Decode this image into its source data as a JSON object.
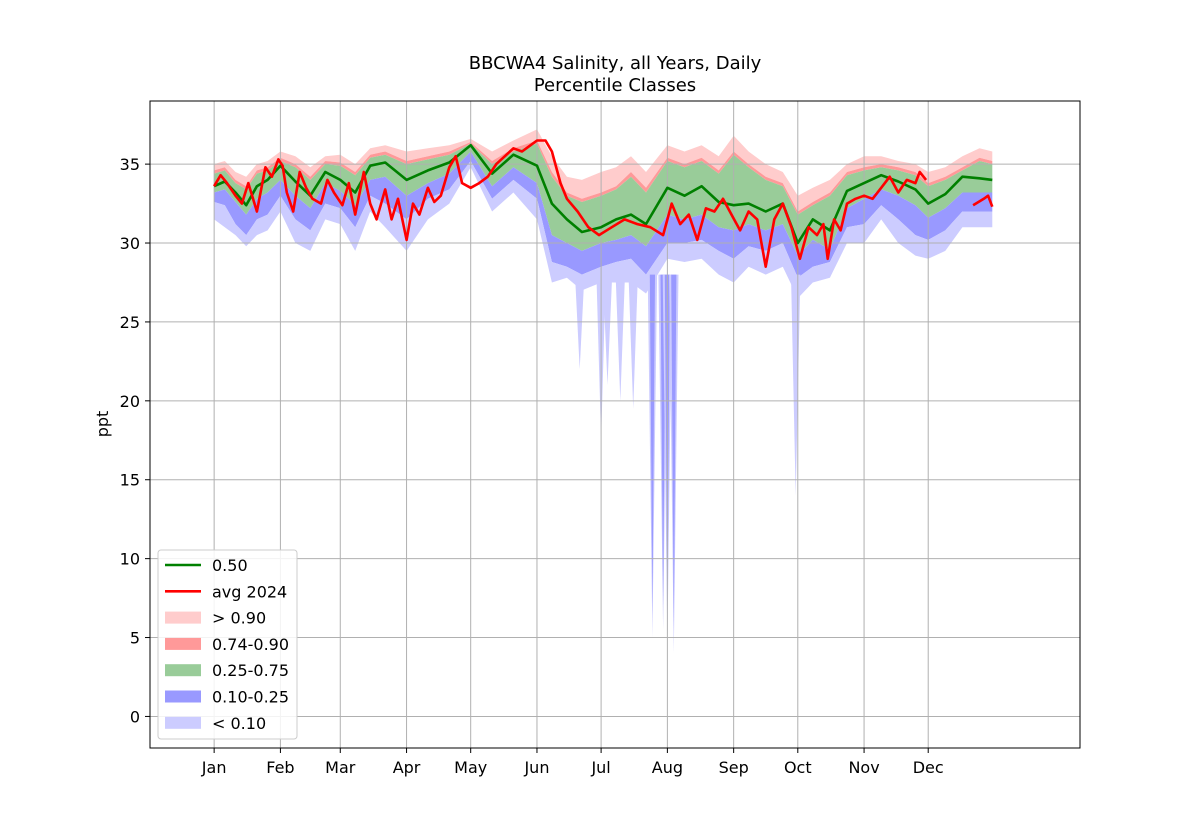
{
  "chart_data": {
    "type": "area",
    "title": "BBCWA4 Salinity, all Years, Daily",
    "subtitle": "Percentile Classes",
    "xlabel": "",
    "ylabel": "ppt",
    "ylim": [
      -2,
      39
    ],
    "xlim": [
      -30,
      405
    ],
    "grid": true,
    "legend_position": "lower-left",
    "x_ticks": [
      {
        "day": 0,
        "label": "Jan"
      },
      {
        "day": 31,
        "label": "Feb"
      },
      {
        "day": 59,
        "label": "Mar"
      },
      {
        "day": 90,
        "label": "Apr"
      },
      {
        "day": 120,
        "label": "May"
      },
      {
        "day": 151,
        "label": "Jun"
      },
      {
        "day": 181,
        "label": "Jul"
      },
      {
        "day": 212,
        "label": "Aug"
      },
      {
        "day": 243,
        "label": "Sep"
      },
      {
        "day": 273,
        "label": "Oct"
      },
      {
        "day": 304,
        "label": "Nov"
      },
      {
        "day": 334,
        "label": "Dec"
      }
    ],
    "y_ticks": [
      0,
      5,
      10,
      15,
      20,
      25,
      30,
      35
    ],
    "x_days": [
      0,
      5,
      10,
      15,
      20,
      25,
      31,
      38,
      45,
      52,
      59,
      66,
      73,
      80,
      90,
      100,
      110,
      120,
      130,
      140,
      151,
      158,
      165,
      172,
      181,
      188,
      195,
      202,
      212,
      220,
      228,
      236,
      243,
      250,
      258,
      266,
      273,
      280,
      288,
      296,
      304,
      312,
      320,
      328,
      334,
      342,
      350,
      358,
      364
    ],
    "median": [
      33.6,
      33.9,
      33.2,
      32.4,
      33.6,
      34.0,
      34.9,
      33.9,
      33.0,
      34.5,
      34.0,
      33.2,
      34.9,
      35.1,
      34.0,
      34.6,
      35.1,
      36.2,
      34.4,
      35.6,
      34.9,
      32.5,
      31.5,
      30.7,
      31.0,
      31.5,
      31.8,
      31.2,
      33.5,
      33.0,
      33.6,
      32.6,
      32.4,
      32.5,
      32.0,
      32.5,
      30.0,
      31.5,
      30.8,
      33.3,
      33.8,
      34.3,
      33.9,
      33.4,
      32.5,
      33.1,
      34.2,
      34.1,
      34.0
    ],
    "band_p90": [
      35.0,
      35.2,
      34.5,
      34.2,
      35.0,
      35.2,
      35.8,
      35.5,
      34.8,
      35.5,
      35.6,
      35.0,
      36.0,
      36.2,
      35.8,
      36.0,
      36.2,
      36.6,
      35.8,
      36.5,
      37.2,
      35.5,
      34.2,
      34.0,
      34.5,
      34.8,
      35.5,
      34.5,
      36.2,
      35.8,
      36.2,
      35.5,
      36.8,
      35.8,
      35.0,
      34.5,
      33.0,
      33.5,
      34.0,
      35.0,
      35.5,
      35.5,
      35.2,
      35.0,
      34.5,
      34.8,
      35.5,
      36.0,
      35.8
    ],
    "band_p74": [
      34.6,
      34.8,
      34.0,
      33.6,
      34.6,
      34.8,
      35.4,
      35.0,
      34.2,
      35.2,
      35.1,
      34.5,
      35.6,
      35.8,
      35.2,
      35.5,
      35.8,
      36.4,
      35.2,
      36.0,
      36.5,
      34.5,
      33.2,
      32.8,
      33.2,
      33.6,
      34.5,
      33.5,
      35.4,
      35.0,
      35.4,
      34.6,
      35.8,
      35.0,
      34.2,
      33.8,
      32.0,
      32.6,
      33.2,
      34.5,
      34.8,
      35.0,
      34.8,
      34.5,
      33.8,
      34.2,
      34.8,
      35.4,
      35.2
    ],
    "band_p75": [
      34.4,
      34.6,
      33.8,
      33.4,
      34.4,
      34.6,
      35.2,
      34.8,
      34.0,
      35.0,
      34.9,
      34.3,
      35.4,
      35.6,
      35.0,
      35.3,
      35.6,
      36.3,
      35.0,
      35.8,
      36.3,
      34.2,
      33.0,
      32.6,
      33.0,
      33.4,
      34.2,
      33.2,
      35.2,
      34.8,
      35.2,
      34.4,
      35.6,
      34.8,
      34.0,
      33.6,
      31.8,
      32.4,
      33.0,
      34.3,
      34.6,
      34.8,
      34.6,
      34.3,
      33.6,
      34.0,
      34.6,
      35.2,
      35.0
    ],
    "band_p25": [
      33.2,
      33.4,
      32.6,
      31.8,
      32.8,
      33.2,
      34.0,
      33.0,
      32.2,
      33.8,
      33.3,
      32.4,
      34.0,
      34.2,
      33.0,
      33.8,
      34.4,
      35.8,
      33.6,
      34.8,
      33.8,
      30.5,
      30.0,
      29.5,
      30.0,
      30.2,
      30.5,
      29.8,
      31.8,
      31.5,
      31.8,
      31.0,
      30.8,
      31.2,
      30.8,
      31.2,
      29.2,
      30.2,
      29.6,
      32.2,
      32.8,
      33.4,
      33.0,
      32.4,
      31.6,
      32.2,
      33.2,
      33.2,
      33.2
    ],
    "band_p10": [
      32.6,
      32.4,
      31.2,
      30.5,
      31.5,
      31.8,
      33.0,
      31.5,
      30.8,
      32.5,
      32.2,
      31.0,
      33.0,
      32.5,
      31.5,
      32.8,
      33.4,
      35.2,
      32.8,
      34.0,
      32.8,
      28.8,
      28.5,
      28.0,
      28.5,
      28.8,
      29.0,
      28.0,
      30.0,
      30.0,
      30.2,
      29.5,
      29.0,
      29.8,
      29.5,
      30.0,
      27.8,
      28.5,
      28.8,
      31.0,
      31.2,
      32.4,
      31.5,
      30.5,
      30.2,
      30.8,
      32.0,
      32.0,
      32.0
    ],
    "band_min": [
      31.5,
      31.0,
      30.5,
      29.8,
      30.5,
      30.8,
      32.0,
      30.0,
      29.5,
      31.5,
      31.2,
      29.5,
      32.0,
      31.0,
      29.5,
      31.5,
      32.5,
      34.8,
      32.0,
      33.2,
      31.5,
      27.5,
      27.8,
      27.0,
      27.5,
      27.5,
      27.5,
      26.8,
      29.0,
      28.8,
      29.0,
      28.0,
      27.5,
      28.5,
      28.0,
      28.5,
      26.5,
      27.5,
      27.8,
      30.0,
      30.0,
      31.5,
      30.0,
      29.2,
      29.0,
      29.5,
      31.0,
      31.0,
      31.0
    ],
    "spikes": [
      {
        "day": 171,
        "value": 22
      },
      {
        "day": 181,
        "value": 17.5
      },
      {
        "day": 184,
        "value": 21
      },
      {
        "day": 190,
        "value": 20
      },
      {
        "day": 196,
        "value": 19.5
      },
      {
        "day": 205,
        "value": 5
      },
      {
        "day": 210,
        "value": 5.5
      },
      {
        "day": 212,
        "value": 4.5
      },
      {
        "day": 215,
        "value": 4
      },
      {
        "day": 272,
        "value": 14
      }
    ],
    "avg_2024_x": [
      0,
      3,
      6,
      10,
      13,
      16,
      20,
      24,
      27,
      30,
      32,
      34,
      37,
      40,
      43,
      46,
      50,
      53,
      56,
      60,
      63,
      66,
      70,
      73,
      76,
      80,
      83,
      86,
      90,
      93,
      96,
      100,
      103,
      106,
      110,
      113,
      116,
      120,
      124,
      128,
      132,
      136,
      140,
      144,
      148,
      151,
      155,
      158,
      162,
      165,
      170,
      175,
      180,
      186,
      192,
      198,
      204,
      210,
      214,
      218,
      222,
      226,
      230,
      234,
      238,
      242,
      246,
      250,
      254,
      258,
      262,
      266,
      270,
      274,
      278,
      282,
      285,
      287,
      290,
      293,
      296,
      300,
      304,
      308,
      312,
      316,
      320,
      324,
      328,
      330,
      333,
      340,
      345,
      350,
      355,
      360,
      362,
      364
    ],
    "avg_2024": [
      33.6,
      34.3,
      33.8,
      33.0,
      32.5,
      33.8,
      32.0,
      34.8,
      34.2,
      35.3,
      34.9,
      33.2,
      32.0,
      34.5,
      33.5,
      32.8,
      32.5,
      34.0,
      33.2,
      32.4,
      33.8,
      31.8,
      34.5,
      32.5,
      31.5,
      33.4,
      31.5,
      32.8,
      30.2,
      32.5,
      31.8,
      33.5,
      32.6,
      33.0,
      34.8,
      35.5,
      33.8,
      33.5,
      33.8,
      34.2,
      35.0,
      35.5,
      36.0,
      35.8,
      36.2,
      36.5,
      36.5,
      35.8,
      33.8,
      32.8,
      32.0,
      31.0,
      30.5,
      31.0,
      31.5,
      31.2,
      31.0,
      30.5,
      32.5,
      31.2,
      31.8,
      30.2,
      32.2,
      32.0,
      32.8,
      31.8,
      30.8,
      32.0,
      31.5,
      28.5,
      31.5,
      32.5,
      31.0,
      29.0,
      31.0,
      30.5,
      31.2,
      29.0,
      31.5,
      30.8,
      32.5,
      32.8,
      33.0,
      32.8,
      33.5,
      34.2,
      33.2,
      34.0,
      33.8,
      34.5,
      34.0,
      null,
      null,
      null,
      32.4,
      32.8,
      33.0,
      32.3
    ]
  },
  "legend": [
    {
      "label": "0.50",
      "kind": "line",
      "color": "#008000"
    },
    {
      "label": "avg 2024",
      "kind": "line",
      "color": "#ff0000"
    },
    {
      "label": "> 0.90",
      "kind": "patch",
      "color": "#ffcccc"
    },
    {
      "label": "0.74-0.90",
      "kind": "patch",
      "color": "#ff9999"
    },
    {
      "label": "0.25-0.75",
      "kind": "patch",
      "color": "#99cc99"
    },
    {
      "label": "0.10-0.25",
      "kind": "patch",
      "color": "#9999ff"
    },
    {
      "label": "< 0.10",
      "kind": "patch",
      "color": "#ccccff"
    }
  ],
  "colors": {
    "median": "#008000",
    "avg": "#ff0000",
    "above90": "#ffcccc",
    "p74_90": "#ff9999",
    "p25_75": "#99cc99",
    "p10_25": "#9999ff",
    "below10": "#ccccff",
    "grid": "#b0b0b0"
  }
}
